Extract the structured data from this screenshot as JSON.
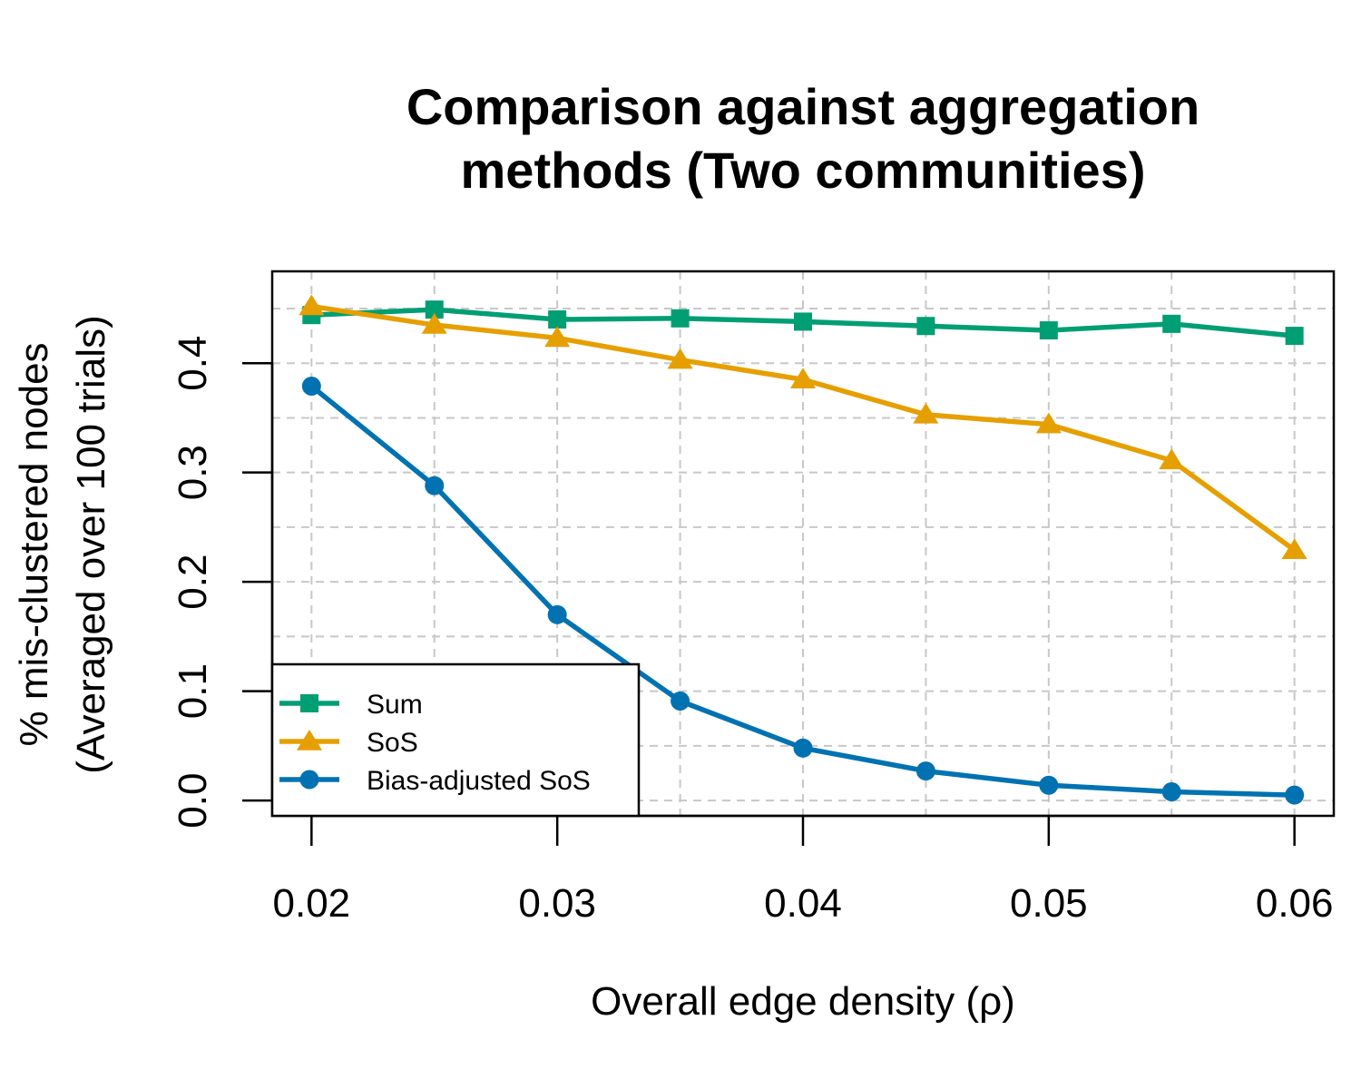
{
  "chart_data": {
    "type": "line",
    "title_lines": [
      "Comparison against aggregation",
      "methods (Two communities)"
    ],
    "xlabel": "Overall edge density (ρ)",
    "ylabel_lines": [
      "% mis-clustered nodes",
      "(Averaged over 100 trials)"
    ],
    "x": [
      0.02,
      0.025,
      0.03,
      0.035,
      0.04,
      0.045,
      0.05,
      0.055,
      0.06
    ],
    "xlim": [
      0.0184,
      0.0616
    ],
    "ylim": [
      -0.014,
      0.484
    ],
    "x_ticks": [
      {
        "value": 0.02,
        "label": "0.02"
      },
      {
        "value": 0.03,
        "label": "0.03"
      },
      {
        "value": 0.04,
        "label": "0.04"
      },
      {
        "value": 0.05,
        "label": "0.05"
      },
      {
        "value": 0.06,
        "label": "0.06"
      }
    ],
    "y_ticks": [
      {
        "value": 0.0,
        "label": "0.0"
      },
      {
        "value": 0.1,
        "label": "0.1"
      },
      {
        "value": 0.2,
        "label": "0.2"
      },
      {
        "value": 0.3,
        "label": "0.3"
      },
      {
        "value": 0.4,
        "label": "0.4"
      }
    ],
    "grid": true,
    "grid_x": [
      0.02,
      0.025,
      0.03,
      0.035,
      0.04,
      0.045,
      0.05,
      0.055,
      0.06
    ],
    "grid_y": [
      0.0,
      0.05,
      0.1,
      0.15,
      0.2,
      0.25,
      0.3,
      0.35,
      0.4,
      0.45
    ],
    "legend_position": "bottom-left",
    "series": [
      {
        "name": "Sum",
        "color": "#009E73",
        "marker": "square",
        "values": [
          0.444,
          0.449,
          0.44,
          0.441,
          0.438,
          0.434,
          0.43,
          0.436,
          0.425
        ]
      },
      {
        "name": "SoS",
        "color": "#E69F00",
        "marker": "triangle",
        "values": [
          0.452,
          0.435,
          0.423,
          0.403,
          0.385,
          0.353,
          0.344,
          0.311,
          0.229
        ]
      },
      {
        "name": "Bias-adjusted SoS",
        "color": "#0072B2",
        "marker": "circle",
        "values": [
          0.379,
          0.288,
          0.17,
          0.091,
          0.048,
          0.027,
          0.014,
          0.008,
          0.005
        ]
      }
    ]
  }
}
